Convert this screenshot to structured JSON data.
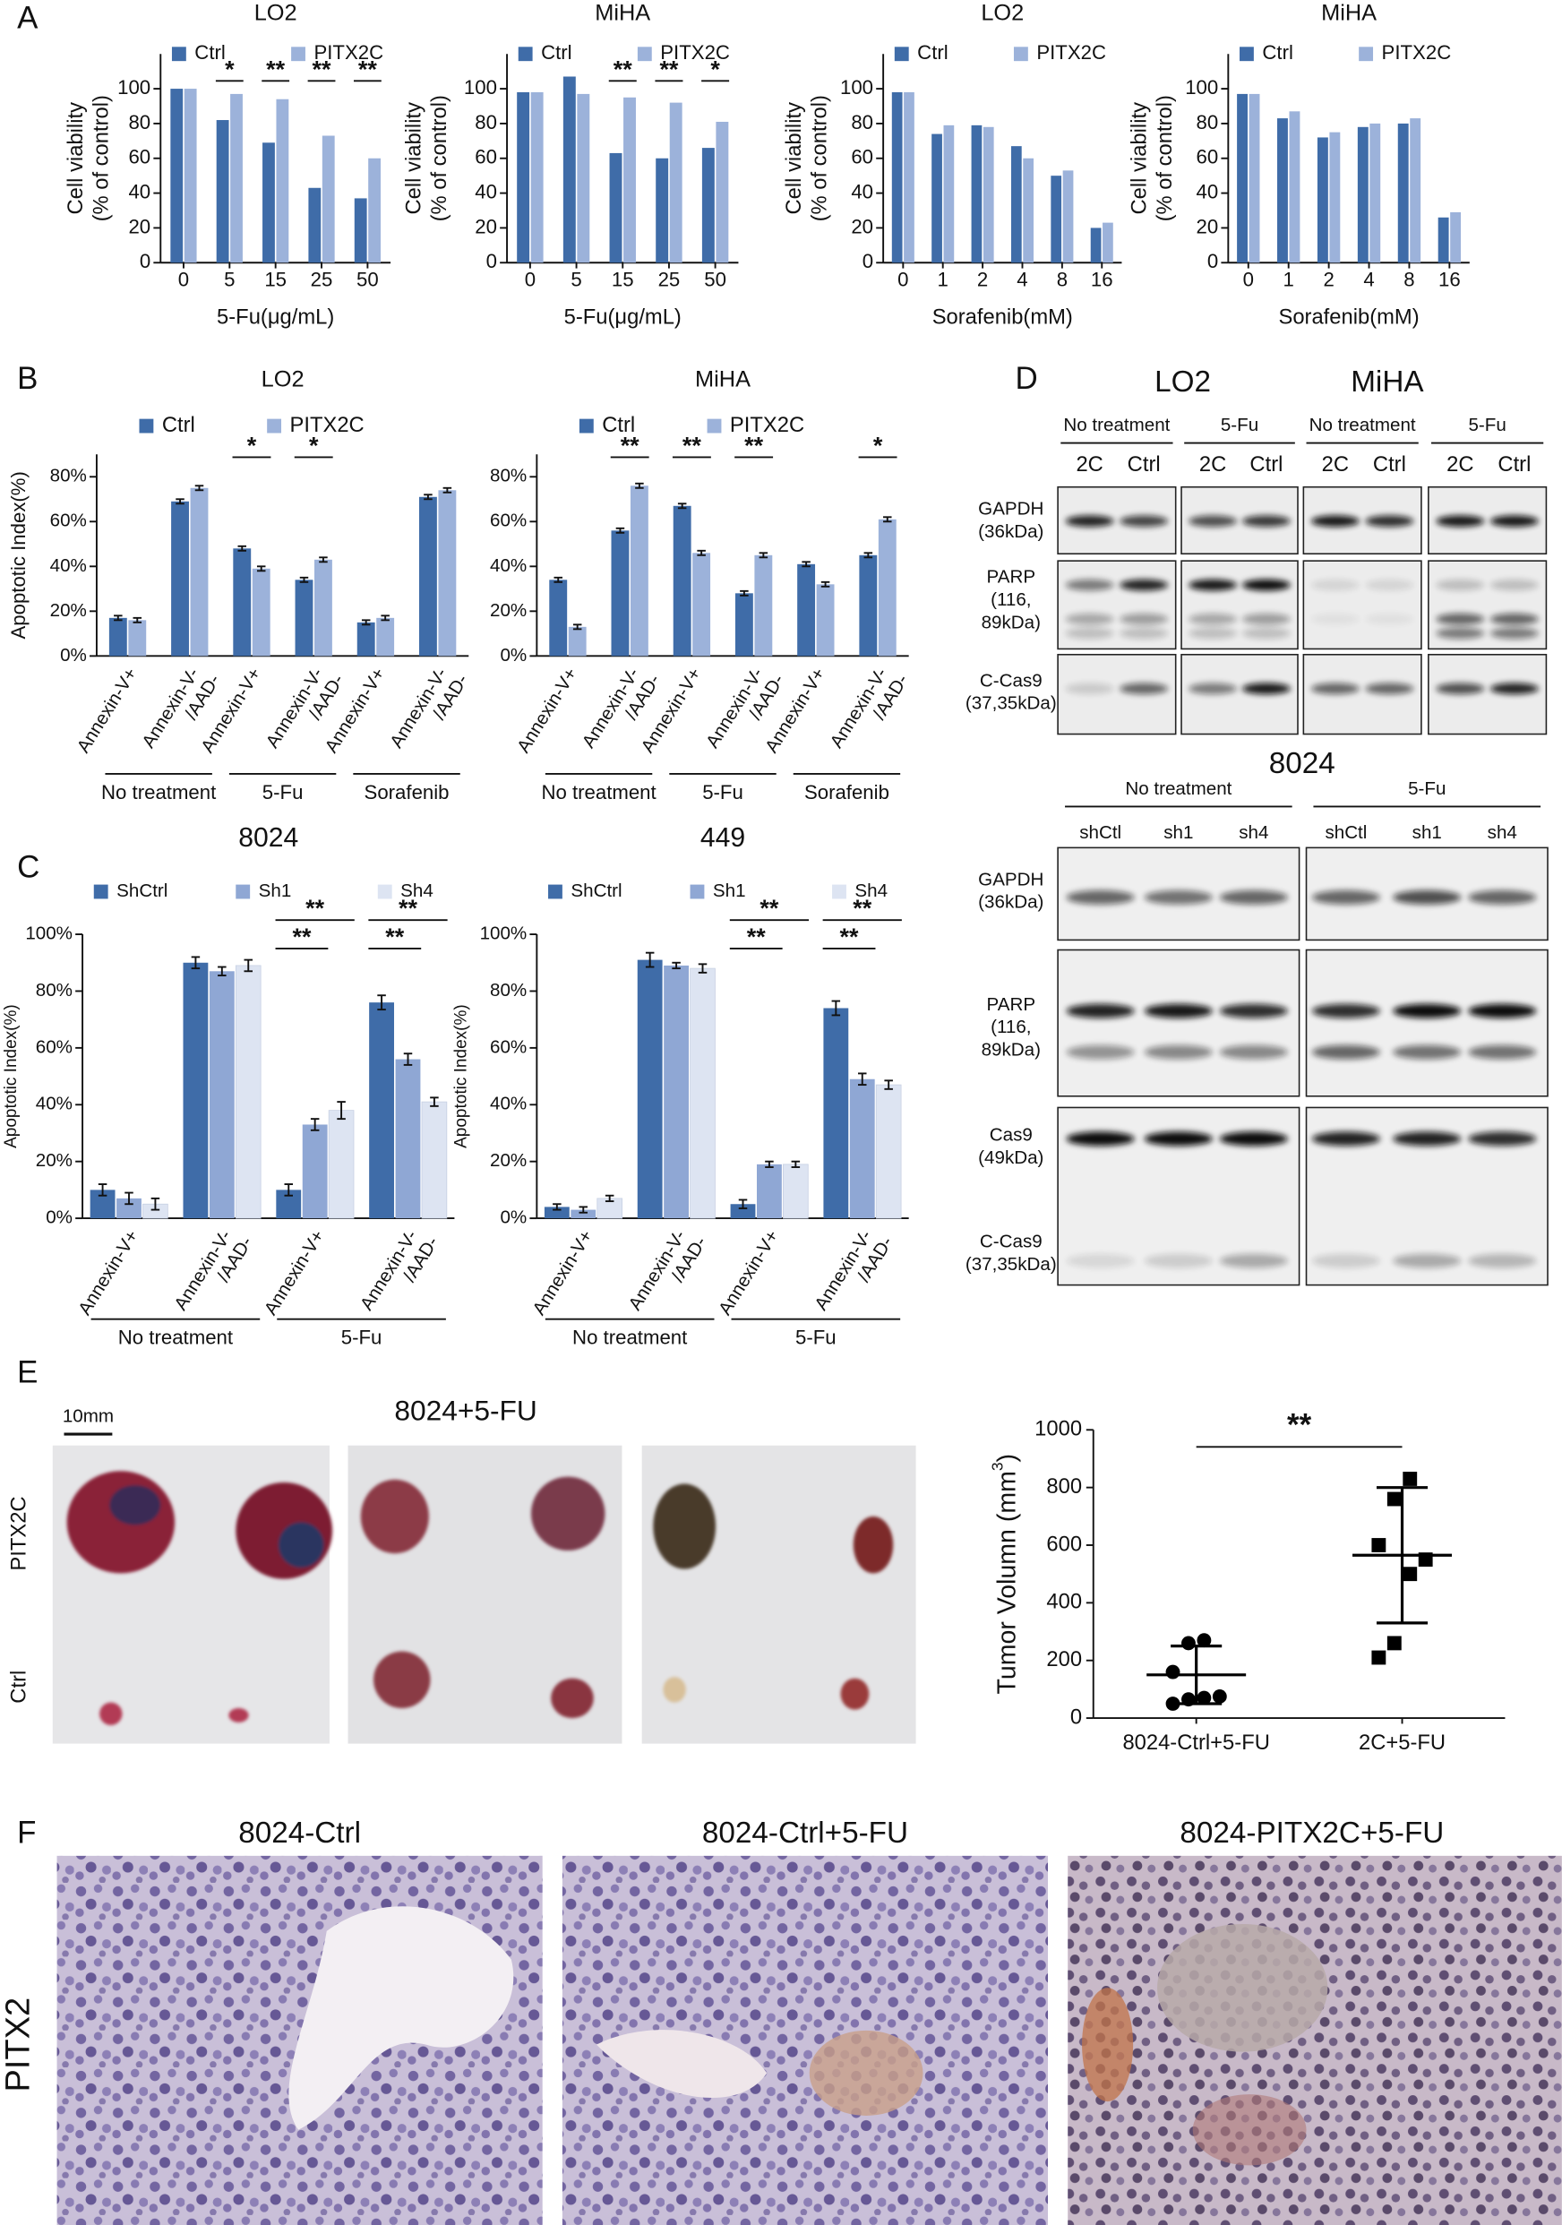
{
  "panel_labels": [
    "A",
    "B",
    "C",
    "D",
    "E",
    "F"
  ],
  "chart_data": [
    {
      "type": "bar",
      "title": "LO2",
      "categories": [
        "0",
        "5",
        "15",
        "25",
        "50"
      ],
      "series": [
        {
          "name": "Ctrl",
          "color": "#3f6ca8",
          "values": [
            100,
            82,
            69,
            43,
            37
          ]
        },
        {
          "name": "PITX2C",
          "color": "#9cb2da",
          "values": [
            100,
            97,
            94,
            73,
            60
          ]
        }
      ],
      "significance": [
        null,
        [
          "*"
        ],
        [
          "**"
        ],
        [
          "**"
        ],
        [
          "**"
        ]
      ],
      "xlabel": "5-Fu(μg/mL)",
      "ylabel": [
        "Cell viability",
        "(% of control)"
      ],
      "ylim": [
        0,
        120
      ],
      "yticks": [
        0,
        20,
        40,
        60,
        80,
        100
      ]
    },
    {
      "type": "bar",
      "title": "MiHA",
      "categories": [
        "0",
        "5",
        "15",
        "25",
        "50"
      ],
      "series": [
        {
          "name": "Ctrl",
          "color": "#3f6ca8",
          "values": [
            98,
            107,
            63,
            60,
            66
          ]
        },
        {
          "name": "PITX2C",
          "color": "#9cb2da",
          "values": [
            98,
            97,
            95,
            92,
            81
          ]
        }
      ],
      "significance": [
        null,
        null,
        [
          "**"
        ],
        [
          "**"
        ],
        [
          "*"
        ]
      ],
      "xlabel": "5-Fu(μg/mL)",
      "ylabel": [
        "Cell viability",
        "(% of control)"
      ],
      "ylim": [
        0,
        120
      ],
      "yticks": [
        0,
        20,
        40,
        60,
        80,
        100
      ]
    },
    {
      "type": "bar",
      "title": "LO2",
      "categories": [
        "0",
        "1",
        "2",
        "4",
        "8",
        "16"
      ],
      "series": [
        {
          "name": "Ctrl",
          "color": "#3f6ca8",
          "values": [
            98,
            74,
            79,
            67,
            50,
            20
          ]
        },
        {
          "name": "PITX2C",
          "color": "#9cb2da",
          "values": [
            98,
            79,
            78,
            60,
            53,
            23
          ]
        }
      ],
      "xlabel": "Sorafenib(mM)",
      "ylabel": [
        "Cell viability",
        "(% of control)"
      ],
      "ylim": [
        0,
        120
      ],
      "yticks": [
        0,
        20,
        40,
        60,
        80,
        100
      ]
    },
    {
      "type": "bar",
      "title": "MiHA",
      "categories": [
        "0",
        "1",
        "2",
        "4",
        "8",
        "16"
      ],
      "series": [
        {
          "name": "Ctrl",
          "color": "#3f6ca8",
          "values": [
            97,
            83,
            72,
            78,
            80,
            26
          ]
        },
        {
          "name": "PITX2C",
          "color": "#9cb2da",
          "values": [
            97,
            87,
            75,
            80,
            83,
            29
          ]
        }
      ],
      "xlabel": "Sorafenib(mM)",
      "ylabel": [
        "Cell viability",
        "(% of control)"
      ],
      "ylim": [
        0,
        120
      ],
      "yticks": [
        0,
        20,
        40,
        60,
        80,
        100
      ]
    },
    {
      "type": "bar",
      "title": "LO2",
      "categories": [
        [
          "Annexin-V+"
        ],
        [
          "Annexin-V-",
          "/AAD-"
        ],
        [
          "Annexin-V+"
        ],
        [
          "Annexin-V-",
          "/AAD-"
        ],
        [
          "Annexin-V+"
        ],
        [
          "Annexin-V-",
          "/AAD-"
        ]
      ],
      "groups": [
        "No treatment",
        "5-Fu",
        "Sorafenib"
      ],
      "series": [
        {
          "name": "Ctrl",
          "color": "#3f6ca8",
          "values": [
            17,
            69,
            48,
            34,
            15,
            71
          ],
          "errors": [
            1,
            1,
            1,
            1,
            1,
            1
          ]
        },
        {
          "name": "PITX2C",
          "color": "#9cb2da",
          "values": [
            16,
            75,
            39,
            43,
            17,
            74
          ],
          "errors": [
            1,
            1,
            1,
            1,
            1,
            1
          ]
        }
      ],
      "significance": [
        null,
        null,
        [
          "*"
        ],
        [
          "*"
        ],
        null,
        null
      ],
      "ylabel": [
        "Apoptotic Index(%)"
      ],
      "ylim": [
        0,
        90
      ],
      "yticks": [
        {
          "value": 0,
          "label": "0%"
        },
        {
          "value": 20,
          "label": "20%"
        },
        {
          "value": 40,
          "label": "40%"
        },
        {
          "value": 60,
          "label": "60%"
        },
        {
          "value": 80,
          "label": "80%"
        }
      ]
    },
    {
      "type": "bar",
      "title": "MiHA",
      "categories": [
        [
          "Annexin-V+"
        ],
        [
          "Annexin-V-",
          "/AAD-"
        ],
        [
          "Annexin-V+"
        ],
        [
          "Annexin-V-",
          "/AAD-"
        ],
        [
          "Annexin-V+"
        ],
        [
          "Annexin-V-",
          "/AAD-"
        ]
      ],
      "groups": [
        "No treatment",
        "5-Fu",
        "Sorafenib"
      ],
      "series": [
        {
          "name": "Ctrl",
          "color": "#3f6ca8",
          "values": [
            34,
            56,
            67,
            28,
            41,
            45
          ],
          "errors": [
            1,
            1,
            1,
            1,
            1,
            1
          ]
        },
        {
          "name": "PITX2C",
          "color": "#9cb2da",
          "values": [
            13,
            76,
            46,
            45,
            32,
            61
          ],
          "errors": [
            1,
            1,
            1,
            1,
            1,
            1
          ]
        }
      ],
      "significance": [
        null,
        [
          "**"
        ],
        [
          "**"
        ],
        [
          "**"
        ],
        null,
        [
          "*"
        ]
      ],
      "ylim": [
        0,
        90
      ],
      "yticks": [
        {
          "value": 0,
          "label": "0%"
        },
        {
          "value": 20,
          "label": "20%"
        },
        {
          "value": 40,
          "label": "40%"
        },
        {
          "value": 60,
          "label": "60%"
        },
        {
          "value": 80,
          "label": "80%"
        }
      ]
    },
    {
      "type": "bar",
      "title": "8024",
      "categories": [
        [
          "Annexin-V+"
        ],
        [
          "Annexin-V-",
          "/AAD-"
        ],
        [
          "Annexin-V+"
        ],
        [
          "Annexin-V-",
          "/AAD-"
        ]
      ],
      "groups": [
        "No treatment",
        "5-Fu"
      ],
      "series": [
        {
          "name": "ShCtrl",
          "color": "#3f6ca8",
          "values": [
            10,
            90,
            10,
            76
          ],
          "errors": [
            2,
            2,
            2,
            2.5
          ]
        },
        {
          "name": "Sh1",
          "color": "#8fa7d4",
          "values": [
            7,
            87,
            33,
            56
          ],
          "errors": [
            2,
            1.5,
            2,
            2
          ]
        },
        {
          "name": "Sh4",
          "color": "#dde4f2",
          "values": [
            5,
            89,
            38,
            41
          ],
          "errors": [
            2,
            2,
            3,
            1.5
          ]
        }
      ],
      "significance": [
        null,
        null,
        [
          "**",
          "**"
        ],
        [
          "**",
          "**"
        ]
      ],
      "ylabel": [
        "Apoptotic Index(%)"
      ],
      "ylim": [
        0,
        100
      ],
      "yticks": [
        {
          "value": 0,
          "label": "0%"
        },
        {
          "value": 20,
          "label": "20%"
        },
        {
          "value": 40,
          "label": "40%"
        },
        {
          "value": 60,
          "label": "60%"
        },
        {
          "value": 80,
          "label": "80%"
        },
        {
          "value": 100,
          "label": "100%"
        }
      ]
    },
    {
      "type": "bar",
      "title": "449",
      "categories": [
        [
          "Annexin-V+"
        ],
        [
          "Annexin-V-",
          "/AAD-"
        ],
        [
          "Annexin-V+"
        ],
        [
          "Annexin-V-",
          "/AAD-"
        ]
      ],
      "groups": [
        "No treatment",
        "5-Fu"
      ],
      "series": [
        {
          "name": "ShCtrl",
          "color": "#3f6ca8",
          "values": [
            4,
            91,
            5,
            74
          ],
          "errors": [
            1,
            2.5,
            1.5,
            2.5
          ]
        },
        {
          "name": "Sh1",
          "color": "#8fa7d4",
          "values": [
            3,
            89,
            19,
            49
          ],
          "errors": [
            1,
            1,
            1,
            2
          ]
        },
        {
          "name": "Sh4",
          "color": "#dde4f2",
          "values": [
            7,
            88,
            19,
            47
          ],
          "errors": [
            1,
            1.5,
            1,
            1.5
          ]
        }
      ],
      "significance": [
        null,
        null,
        [
          "**",
          "**"
        ],
        [
          "**",
          "**"
        ]
      ],
      "ylabel": [
        "Apoptotic Index(%)"
      ],
      "ylim": [
        0,
        100
      ],
      "yticks": [
        {
          "value": 0,
          "label": "0%"
        },
        {
          "value": 20,
          "label": "20%"
        },
        {
          "value": 40,
          "label": "40%"
        },
        {
          "value": 60,
          "label": "60%"
        },
        {
          "value": 80,
          "label": "80%"
        },
        {
          "value": 100,
          "label": "100%"
        }
      ]
    },
    {
      "type": "scatter",
      "categories": [
        "8024-Ctrl+5-FU",
        "2C+5-FU"
      ],
      "series": [
        {
          "color": "#000000",
          "values": [
            50,
            65,
            70,
            75,
            160,
            260,
            270
          ]
        },
        {
          "color": "#000000",
          "values": [
            210,
            260,
            500,
            550,
            600,
            760,
            830
          ]
        }
      ],
      "means": [
        150,
        565
      ],
      "sd": [
        100,
        235
      ],
      "significance": "**",
      "ylabel": "Tumor Volumn (mm",
      "ylabel_superscript": "3",
      "ylabel_suffix": ")",
      "ylim": [
        0,
        1000
      ],
      "yticks": [
        0,
        200,
        400,
        600,
        800,
        1000
      ]
    }
  ],
  "blots_hepatocyte": {
    "cell_lines": [
      "LO2",
      "MiHA"
    ],
    "treatments": [
      "No treatment",
      "5-Fu",
      "No treatment",
      "5-Fu"
    ],
    "lanes": [
      "2C",
      "Ctrl",
      "2C",
      "Ctrl",
      "2C",
      "Ctrl",
      "2C",
      "Ctrl"
    ],
    "rows": [
      [
        "GAPDH",
        "(36kDa)"
      ],
      [
        "PARP",
        "(116,",
        "89kDa)"
      ],
      [
        "C-Cas9",
        "(37,35kDa)"
      ]
    ]
  },
  "blots_8024": {
    "title": "8024",
    "treatments": [
      "No treatment",
      "5-Fu"
    ],
    "lanes": [
      "shCtl",
      "sh1",
      "sh4",
      "shCtl",
      "sh1",
      "sh4"
    ],
    "rows": [
      [
        "GAPDH",
        "(36kDa)"
      ],
      [
        "PARP",
        "(116,",
        "89kDa)"
      ],
      [
        "Cas9",
        "(49kDa)"
      ],
      [
        "C-Cas9",
        "(37,35kDa)"
      ]
    ]
  },
  "tumor_photos": {
    "title": "8024+5-FU",
    "scale_bar": "10mm",
    "rows": [
      "PITX2C",
      "Ctrl"
    ]
  },
  "histology": {
    "titles": [
      "8024-Ctrl",
      "8024-Ctrl+5-FU",
      "8024-PITX2C+5-FU"
    ],
    "row_label": "PITX2"
  }
}
